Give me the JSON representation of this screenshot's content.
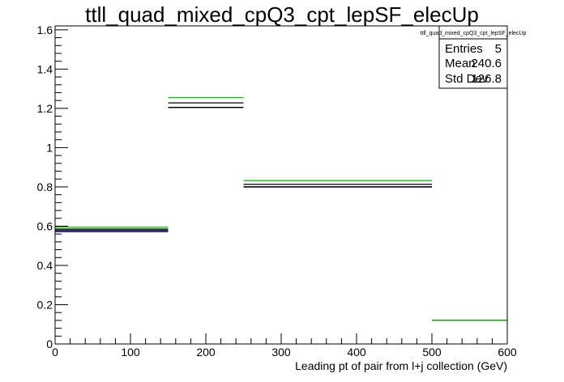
{
  "chart_data": {
    "type": "bar",
    "title": "ttll_quad_mixed_cpQ3_cpt_lepSF_elecUp",
    "xlabel": "Leading pt of pair from l+j collection (GeV)",
    "ylabel": "",
    "xlim": [
      0,
      600
    ],
    "ylim": [
      0,
      1.62
    ],
    "x_ticks": [
      "0",
      "100",
      "200",
      "300",
      "400",
      "500",
      "600"
    ],
    "y_ticks": [
      "0",
      "0.2",
      "0.4",
      "0.6",
      "0.8",
      "1",
      "1.2",
      "1.4",
      "1.6"
    ],
    "bin_edges": [
      0,
      150,
      250,
      500,
      600
    ],
    "series": [
      {
        "color": "#00cc00",
        "values": [
          0.595,
          1.255,
          0.832,
          0.12
        ]
      },
      {
        "color": "#000000",
        "values": [
          0.585,
          1.228,
          0.813,
          0.12
        ]
      },
      {
        "color": "#000000",
        "values": [
          0.578,
          1.205,
          0.8,
          0.12
        ]
      },
      {
        "color": "#0000cc",
        "values": [
          0.572,
          1.205,
          0.8,
          0.12
        ]
      }
    ],
    "stats": {
      "name": "ttll_quad_mixed_cpQ3_cpt_lepSF_elecUp",
      "rows": [
        {
          "label": "Entries",
          "value": "5"
        },
        {
          "label": "Mean",
          "value": "240.6"
        },
        {
          "label": "Std Dev",
          "value": "126.8"
        }
      ]
    }
  }
}
